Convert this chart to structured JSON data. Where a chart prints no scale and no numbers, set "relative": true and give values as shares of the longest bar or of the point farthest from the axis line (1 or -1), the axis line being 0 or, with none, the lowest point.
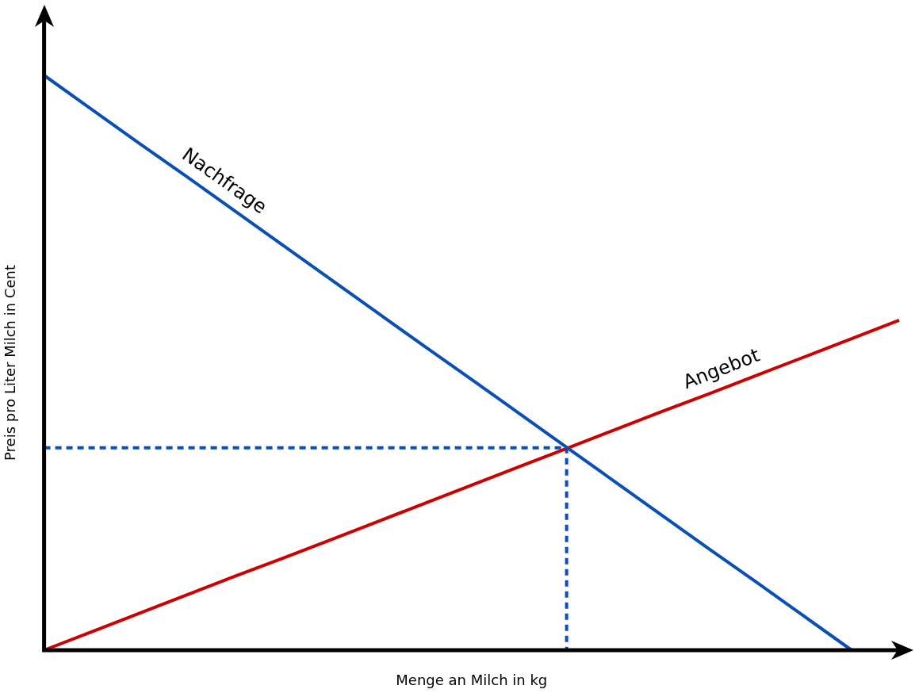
{
  "chart_data": {
    "type": "line",
    "relative": true,
    "xlabel": "Menge an Milch in kg",
    "ylabel": "Preis pro Liter Milch in Cent",
    "grid": false,
    "legend": false,
    "marker": "none",
    "categories": [
      null,
      null,
      null,
      null,
      null,
      null,
      null,
      null,
      null,
      null,
      null,
      null,
      null,
      null,
      null,
      null,
      null,
      null,
      null
    ],
    "series": [
      {
        "name": "Nachfrage",
        "color": "#0a50b4",
        "values": [
          1,
          0.941,
          0.882,
          0.824,
          0.765,
          0.706,
          0.647,
          0.588,
          0.529,
          0.471,
          0.412,
          0.353,
          0.294,
          0.235,
          0.176,
          0.118,
          0.059,
          0,
          null
        ]
      },
      {
        "name": "Angebot",
        "color": "#cc0000",
        "values": [
          0,
          0.032,
          0.064,
          0.096,
          0.128,
          0.159,
          0.191,
          0.223,
          0.255,
          0.287,
          0.319,
          0.351,
          0.383,
          0.415,
          0.446,
          0.478,
          0.51,
          0.542,
          0.574
        ]
      },
      {
        "type": "step",
        "color": "#0a50b4",
        "line_style": "dashed",
        "values": [
          0.352,
          0.352,
          0.352,
          0.352,
          0.352,
          0.352,
          0.352,
          0.352,
          0.352,
          0.352,
          0.352,
          0.352,
          0,
          null,
          null,
          null,
          null,
          null,
          null
        ]
      }
    ]
  }
}
